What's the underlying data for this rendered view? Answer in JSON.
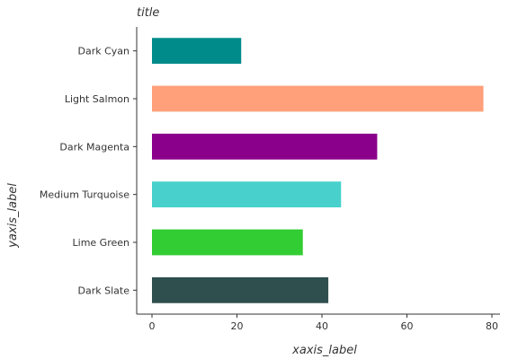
{
  "chart_data": {
    "type": "bar",
    "orientation": "horizontal",
    "title": "title",
    "xlabel": "xaxis_label",
    "ylabel": "yaxis_label",
    "categories": [
      "Dark Slate",
      "Lime Green",
      "Medium Turquoise",
      "Dark Magenta",
      "Light Salmon",
      "Dark Cyan"
    ],
    "values": [
      41.5,
      35.5,
      44.5,
      53,
      78,
      21
    ],
    "colors": [
      "#2f4f4f",
      "#32cd32",
      "#48d1cc",
      "#8b008b",
      "#ffa07a",
      "#008b8b"
    ],
    "xlim": [
      0,
      80
    ],
    "xticks": [
      0,
      20,
      40,
      60,
      80
    ],
    "grid": false,
    "legend": "none"
  }
}
